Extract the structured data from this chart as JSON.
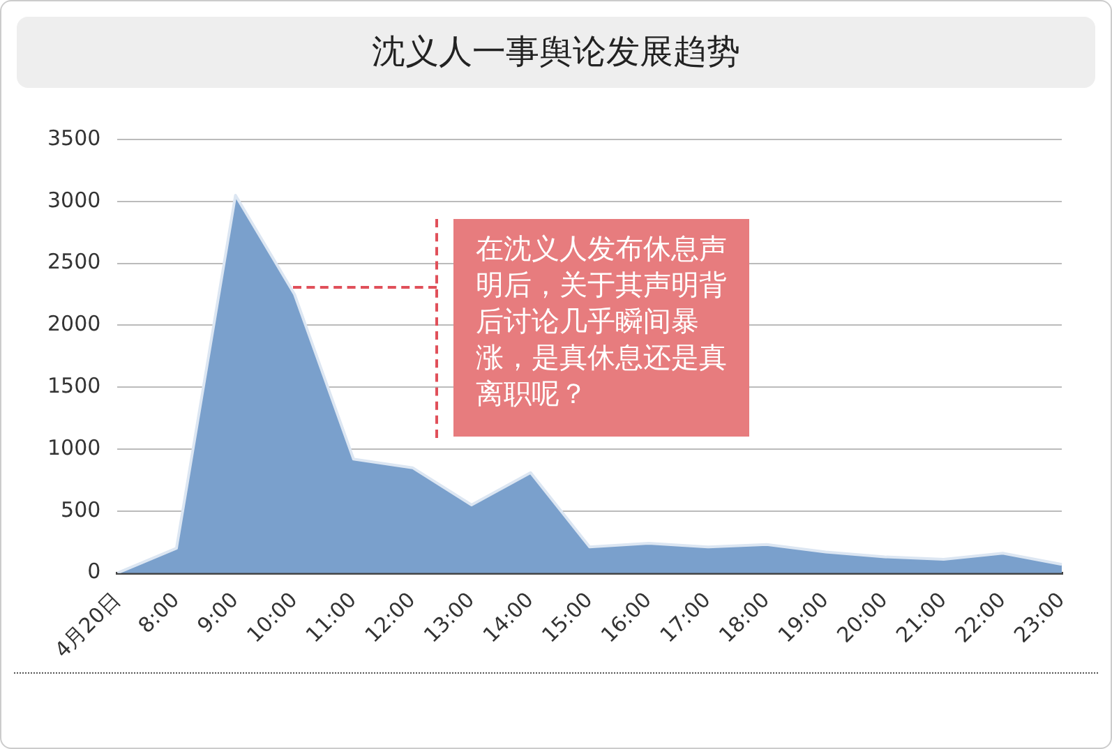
{
  "chart_data": {
    "type": "area",
    "title": "沈义人一事舆论发展趋势",
    "categories": [
      "4月20日",
      "8:00",
      "9:00",
      "10:00",
      "11:00",
      "12:00",
      "13:00",
      "14:00",
      "15:00",
      "16:00",
      "17:00",
      "18:00",
      "19:00",
      "20:00",
      "21:00",
      "22:00",
      "23:00"
    ],
    "values": [
      0,
      200,
      3050,
      2250,
      920,
      850,
      550,
      810,
      210,
      240,
      210,
      230,
      170,
      130,
      110,
      160,
      70
    ],
    "color": "#7aa0cc",
    "ylim": [
      0,
      3500
    ],
    "yticks": [
      0,
      500,
      1000,
      1500,
      2000,
      2500,
      3000,
      3500
    ],
    "grid": "y",
    "annotations": [
      "在沈义人发布休息声明后，关于其声明背后讨论几乎瞬间暴涨，是真休息还是真离职呢？"
    ]
  }
}
